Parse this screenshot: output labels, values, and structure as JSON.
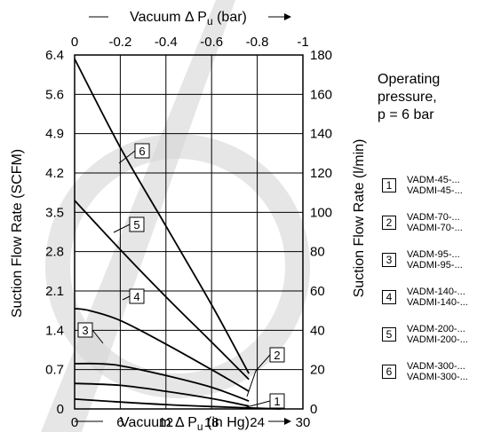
{
  "chart_data": {
    "type": "line",
    "x_bottom": {
      "label_prefix": "Vacuum Δ P",
      "label_sub": "u",
      "label_suffix": " (in Hg)",
      "range": [
        0,
        30
      ],
      "ticks": [
        "0",
        "6",
        "12",
        "18",
        "24",
        "30"
      ]
    },
    "x_top": {
      "label_prefix": "Vacuum Δ P",
      "label_sub": "u",
      "label_suffix": " (bar)",
      "range": [
        0,
        -1
      ],
      "ticks": [
        "0",
        "-0.2",
        "-0.4",
        "-0.6",
        "-0.8",
        "-1"
      ]
    },
    "y_left": {
      "label": "Suction Flow Rate (SCFM)",
      "range": [
        0,
        6.4
      ],
      "ticks": [
        "0",
        "0.7",
        "1.4",
        "2.1",
        "2.8",
        "3.5",
        "4.2",
        "4.9",
        "5.6",
        "6.4"
      ]
    },
    "y_right": {
      "label": "Suction Flow Rate (l/min)",
      "range": [
        0,
        180
      ],
      "ticks": [
        "0",
        "20",
        "40",
        "60",
        "80",
        "100",
        "120",
        "140",
        "160",
        "180"
      ]
    },
    "grid": true,
    "series": [
      {
        "name": "1",
        "x": [
          0,
          6,
          12,
          18,
          24,
          27.1
        ],
        "y": [
          5,
          3.5,
          2.2,
          1.2,
          0.4,
          0
        ]
      },
      {
        "name": "2",
        "x": [
          0,
          6,
          12,
          18,
          22.9
        ],
        "y": [
          13,
          12,
          9,
          5.3,
          1.5
        ]
      },
      {
        "name": "3",
        "x": [
          0,
          3,
          6,
          12,
          18,
          22.9
        ],
        "y": [
          23,
          23,
          22,
          17,
          11,
          4
        ]
      },
      {
        "name": "4",
        "x": [
          0,
          2,
          6,
          12,
          18,
          22.9
        ],
        "y": [
          51,
          50,
          45,
          33,
          20,
          9
        ]
      },
      {
        "name": "5",
        "x": [
          0,
          6,
          12,
          18,
          22.9
        ],
        "y": [
          106,
          81,
          57,
          34,
          15
        ]
      },
      {
        "name": "6",
        "x": [
          0,
          6,
          12,
          18,
          22.9
        ],
        "y": [
          178,
          133,
          93,
          53,
          18
        ]
      }
    ],
    "callouts": [
      "1",
      "2",
      "3",
      "4",
      "5",
      "6"
    ]
  },
  "note": {
    "lines": [
      "Operating",
      "pressure,",
      "p = 6 bar"
    ]
  },
  "legend": [
    {
      "num": "1",
      "line1": "VADM-45-...",
      "line2": "VADMI-45-..."
    },
    {
      "num": "2",
      "line1": "VADM-70-...",
      "line2": "VADMI-70-..."
    },
    {
      "num": "3",
      "line1": "VADM-95-...",
      "line2": "VADMI-95-..."
    },
    {
      "num": "4",
      "line1": "VADM-140-...",
      "line2": "VADMI-140-..."
    },
    {
      "num": "5",
      "line1": "VADM-200-...",
      "line2": "VADMI-200-..."
    },
    {
      "num": "6",
      "line1": "VADM-300-...",
      "line2": "VADMI-300-..."
    }
  ]
}
